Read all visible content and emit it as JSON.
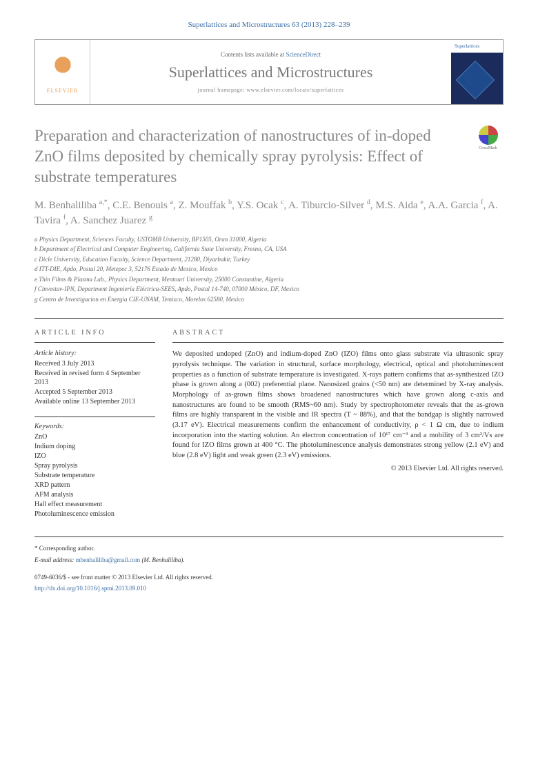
{
  "citation": "Superlattices and Microstructures 63 (2013) 228–239",
  "header": {
    "contents_prefix": "Contents lists available at ",
    "contents_link": "ScienceDirect",
    "journal_name": "Superlattices and Microstructures",
    "homepage": "journal homepage: www.elsevier.com/locate/superlattices",
    "elsevier": "ELSEVIER",
    "cover_title": "Superlattices"
  },
  "crossmark": "CrossMark",
  "title": "Preparation and characterization of nanostructures of in-doped ZnO films deposited by chemically spray pyrolysis: Effect of substrate temperatures",
  "authors_html": "M. Benhaliliba <sup>a,*</sup>, C.E. Benouis <sup>a</sup>, Z. Mouffak <sup>b</sup>, Y.S. Ocak <sup>c</sup>, A. Tiburcio-Silver <sup>d</sup>, M.S. Aida <sup>e</sup>, A.A. Garcia <sup>f</sup>, A. Tavira <sup>f</sup>, A. Sanchez Juarez <sup>g</sup>",
  "affiliations": [
    "a Physics Department, Sciences Faculty, USTOMB University, BP1505, Oran 31000, Algeria",
    "b Department of Electrical and Computer Engineering, California State University, Fresno, CA, USA",
    "c Dicle University, Education Faculty, Science Department, 21280, Diyarbakir, Turkey",
    "d ITT-DIE, Apdo, Postal 20, Metepec 3, 52176 Estado de Mexico, Mexico",
    "e Thin Films & Plasma Lab., Physics Department, Mentouri University, 25000 Constantine, Algeria",
    "f Cinvestav-IPN, Department Ingeniería Eléctrica-SEES, Apdo, Postal 14-740, 07000 México, DF, Mexico",
    "g Centro de Investigacion en Energia CIE-UNAM, Temixco, Morelos 62580, Mexico"
  ],
  "info": {
    "heading": "ARTICLE INFO",
    "history_label": "Article history:",
    "history": [
      "Received 3 July 2013",
      "Received in revised form 4 September 2013",
      "Accepted 5 September 2013",
      "Available online 13 September 2013"
    ],
    "keywords_label": "Keywords:",
    "keywords": [
      "ZnO",
      "Indium doping",
      "IZO",
      "Spray pyrolysis",
      "Substrate temperature",
      "XRD pattern",
      "AFM analysis",
      "Hall effect measurement",
      "Photoluminescence emission"
    ]
  },
  "abstract": {
    "heading": "ABSTRACT",
    "text": "We deposited undoped (ZnO) and indium-doped ZnO (IZO) films onto glass substrate via ultrasonic spray pyrolysis technique. The variation in structural, surface morphology, electrical, optical and photoluminescent properties as a function of substrate temperature is investigated. X-rays pattern confirms that as-synthesized IZO phase is grown along a (002) preferential plane. Nanosized grains (<50 nm) are determined by X-ray analysis. Morphology of as-grown films shows broadened nanostructures which have grown along c-axis and nanostructures are found to be smooth (RMS~60 nm). Study by spectrophotometer reveals that the as-grown films are highly transparent in the visible and IR spectra (T ~ 88%), and that the bandgap is slightly narrowed (3.17 eV). Electrical measurements confirm the enhancement of conductivity, ρ < 1 Ω cm, due to indium incorporation into the starting solution. An electron concentration of 10¹⁷ cm⁻³ and a mobility of 3 cm²/Vs are found for IZO films grown at 400 °C. The photoluminescence analysis demonstrates strong yellow (2.1 eV) and blue (2.8 eV) light and weak green (2.3 eV) emissions.",
    "copyright": "© 2013 Elsevier Ltd. All rights reserved."
  },
  "footer": {
    "corresponding_label": "* Corresponding author.",
    "email_label": "E-mail address: ",
    "email": "mbenhaliliba@gmail.com",
    "email_author": " (M. Benhaliliba).",
    "issn": "0749-6036/$ - see front matter © 2013 Elsevier Ltd. All rights reserved.",
    "doi_label": "",
    "doi": "http://dx.doi.org/10.1016/j.spmi.2013.09.010"
  }
}
